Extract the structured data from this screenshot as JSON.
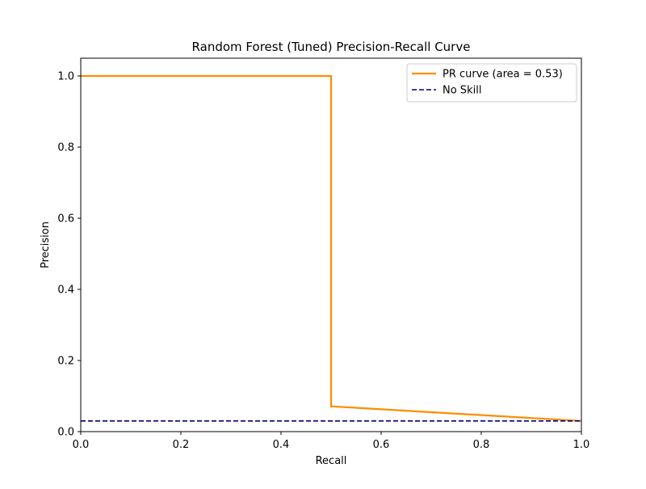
{
  "chart_data": {
    "type": "line",
    "title": "Random Forest (Tuned) Precision-Recall Curve",
    "xlabel": "Recall",
    "ylabel": "Precision",
    "xlim": [
      0.0,
      1.0
    ],
    "ylim": [
      0.0,
      1.05
    ],
    "x_ticks": [
      "0.0",
      "0.2",
      "0.4",
      "0.6",
      "0.8",
      "1.0"
    ],
    "y_ticks": [
      "0.0",
      "0.2",
      "0.4",
      "0.6",
      "0.8",
      "1.0"
    ],
    "grid": false,
    "legend_position": "top-right",
    "series": [
      {
        "name": "PR curve (area = 0.53)",
        "color": "#ff8c00",
        "style": "solid",
        "points": [
          [
            0.0,
            1.0
          ],
          [
            0.5,
            1.0
          ],
          [
            0.5,
            0.071
          ],
          [
            1.0,
            0.03
          ]
        ]
      },
      {
        "name": "No Skill",
        "color": "#000080",
        "style": "dashed",
        "points": [
          [
            0.0,
            0.03
          ],
          [
            1.0,
            0.03
          ]
        ]
      }
    ]
  }
}
